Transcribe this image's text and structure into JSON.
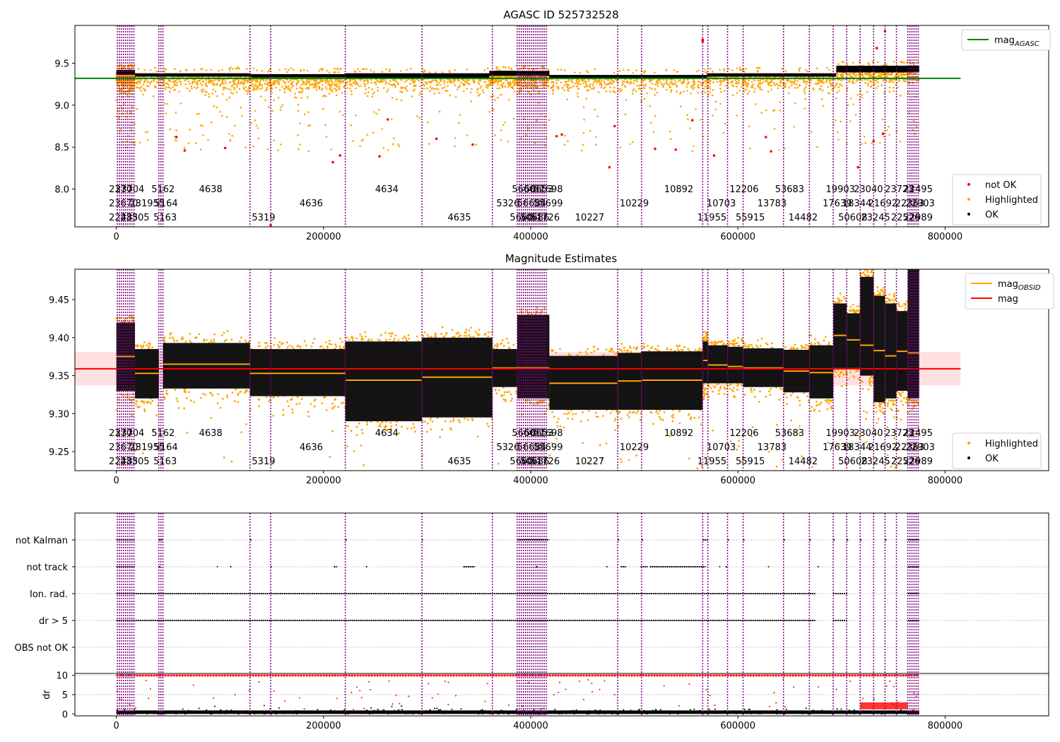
{
  "colors": {
    "agasc_line": "#008000",
    "obs_mag": "#ffa500",
    "mag": "#ff0000",
    "not_ok": "#ff0000",
    "highlighted": "#ffa500",
    "ok": "#000000",
    "obs_line": "#800080",
    "band": "#ffcccc"
  },
  "chart_data": [
    {
      "type": "scatter",
      "title": "AGASC ID 525732528",
      "xlim": [
        -40000,
        900000
      ],
      "ylim": [
        7.55,
        9.95
      ],
      "xticks": [
        0,
        200000,
        400000,
        600000,
        800000
      ],
      "xtick_labels": [
        "0",
        "200000",
        "400000",
        "600000",
        "800000"
      ],
      "yticks": [
        8.0,
        8.5,
        9.0,
        9.5
      ],
      "ytick_labels": [
        "8.0",
        "8.5",
        "9.0",
        "9.5"
      ],
      "legend_upper": {
        "position": "top-right",
        "entries": [
          {
            "label": "mag",
            "subscript": "AGASC",
            "color": "#008000"
          }
        ]
      },
      "legend_lower": {
        "position": "bottom-right",
        "entries": [
          {
            "label": "not OK",
            "color": "#ff0000"
          },
          {
            "label": "Highlighted",
            "color": "#ffa500"
          },
          {
            "label": "OK",
            "color": "#000000"
          }
        ]
      },
      "mag_agasc": 9.32,
      "mag_agasc_x": [
        -40000,
        815000
      ],
      "segments": [
        {
          "x0": 0,
          "x1": 18000,
          "mean": 9.39,
          "spread": 0.03
        },
        {
          "x0": 18000,
          "x1": 130000,
          "mean": 9.36,
          "spread": 0.02
        },
        {
          "x0": 130000,
          "x1": 220000,
          "mean": 9.35,
          "spread": 0.02
        },
        {
          "x0": 220000,
          "x1": 360000,
          "mean": 9.35,
          "spread": 0.03
        },
        {
          "x0": 360000,
          "x1": 418000,
          "mean": 9.38,
          "spread": 0.03
        },
        {
          "x0": 418000,
          "x1": 570000,
          "mean": 9.34,
          "spread": 0.02
        },
        {
          "x0": 570000,
          "x1": 695000,
          "mean": 9.36,
          "spread": 0.02
        },
        {
          "x0": 695000,
          "x1": 775000,
          "mean": 9.43,
          "spread": 0.04
        }
      ],
      "not_ok_points": [
        {
          "x": 58000,
          "y": 8.62
        },
        {
          "x": 66000,
          "y": 8.46
        },
        {
          "x": 105000,
          "y": 8.49
        },
        {
          "x": 209000,
          "y": 8.32
        },
        {
          "x": 216000,
          "y": 8.4
        },
        {
          "x": 254000,
          "y": 8.39
        },
        {
          "x": 262000,
          "y": 8.83
        },
        {
          "x": 309000,
          "y": 8.6
        },
        {
          "x": 344000,
          "y": 8.53
        },
        {
          "x": 425000,
          "y": 8.63
        },
        {
          "x": 430000,
          "y": 8.65
        },
        {
          "x": 476000,
          "y": 8.26
        },
        {
          "x": 481000,
          "y": 8.75
        },
        {
          "x": 520000,
          "y": 8.48
        },
        {
          "x": 540000,
          "y": 8.47
        },
        {
          "x": 556000,
          "y": 8.82
        },
        {
          "x": 566000,
          "y": 9.78
        },
        {
          "x": 566000,
          "y": 9.76
        },
        {
          "x": 577000,
          "y": 8.4
        },
        {
          "x": 627000,
          "y": 8.62
        },
        {
          "x": 632000,
          "y": 8.45
        },
        {
          "x": 716000,
          "y": 8.26
        },
        {
          "x": 731000,
          "y": 8.57
        },
        {
          "x": 734000,
          "y": 9.68
        },
        {
          "x": 740000,
          "y": 8.66
        },
        {
          "x": 742000,
          "y": 9.88
        },
        {
          "x": 149000,
          "y": 7.57
        }
      ],
      "obs_lines": [
        1000,
        3000,
        5000,
        7000,
        9000,
        11000,
        13000,
        15000,
        17000,
        41000,
        43000,
        45000,
        129000,
        149000,
        221000,
        295000,
        363000,
        387000,
        389000,
        391000,
        393000,
        395000,
        397000,
        399000,
        401000,
        403000,
        405000,
        407000,
        409000,
        411000,
        413000,
        415000,
        484000,
        507000,
        566000,
        571000,
        590000,
        605000,
        644000,
        669000,
        692000,
        705000,
        718000,
        731000,
        742000,
        753000,
        764000,
        766000,
        768000,
        770000,
        772000,
        774000
      ],
      "obs_labels": [
        {
          "text": "2370",
          "x": 1000,
          "row": 0
        },
        {
          "text": "23704",
          "x": 7000,
          "row": 0
        },
        {
          "text": "5162",
          "x": 42000,
          "row": 0
        },
        {
          "text": "4638",
          "x": 88000,
          "row": 0
        },
        {
          "text": "4634",
          "x": 258000,
          "row": 0
        },
        {
          "text": "5660",
          "x": 390000,
          "row": 0
        },
        {
          "text": "56653",
          "x": 402000,
          "row": 0
        },
        {
          "text": "51698",
          "x": 411000,
          "row": 0
        },
        {
          "text": "10892",
          "x": 537000,
          "row": 0
        },
        {
          "text": "12206",
          "x": 600000,
          "row": 0
        },
        {
          "text": "53683",
          "x": 644000,
          "row": 0
        },
        {
          "text": "19903",
          "x": 693000,
          "row": 0
        },
        {
          "text": "23040",
          "x": 720000,
          "row": 0
        },
        {
          "text": "23723",
          "x": 750000,
          "row": 0
        },
        {
          "text": "22495",
          "x": 768000,
          "row": 0
        },
        {
          "text": "23670",
          "x": 1000,
          "row": 1
        },
        {
          "text": "231955",
          "x": 21000,
          "row": 1
        },
        {
          "text": "5164",
          "x": 45000,
          "row": 1
        },
        {
          "text": "4636",
          "x": 185000,
          "row": 1
        },
        {
          "text": "5326",
          "x": 375000,
          "row": 1
        },
        {
          "text": "56684",
          "x": 395000,
          "row": 1
        },
        {
          "text": "55699",
          "x": 411000,
          "row": 1
        },
        {
          "text": "10229",
          "x": 494000,
          "row": 1
        },
        {
          "text": "10703",
          "x": 578000,
          "row": 1
        },
        {
          "text": "13783",
          "x": 627000,
          "row": 1
        },
        {
          "text": "17639",
          "x": 690000,
          "row": 1
        },
        {
          "text": "18344",
          "x": 709000,
          "row": 1
        },
        {
          "text": "21692",
          "x": 734000,
          "row": 1
        },
        {
          "text": "22363",
          "x": 760000,
          "row": 1
        },
        {
          "text": "22903",
          "x": 770000,
          "row": 1
        },
        {
          "text": "22485",
          "x": 1000,
          "row": 2
        },
        {
          "text": "23305",
          "x": 12000,
          "row": 2
        },
        {
          "text": "5163",
          "x": 44000,
          "row": 2
        },
        {
          "text": "5319",
          "x": 139000,
          "row": 2
        },
        {
          "text": "4635",
          "x": 328000,
          "row": 2
        },
        {
          "text": "5660",
          "x": 388000,
          "row": 2
        },
        {
          "text": "50686",
          "x": 398000,
          "row": 2
        },
        {
          "text": "51726",
          "x": 408000,
          "row": 2
        },
        {
          "text": "10227",
          "x": 451000,
          "row": 2
        },
        {
          "text": "11955",
          "x": 569000,
          "row": 2
        },
        {
          "text": "55915",
          "x": 606000,
          "row": 2
        },
        {
          "text": "14482",
          "x": 657000,
          "row": 2
        },
        {
          "text": "50608",
          "x": 705000,
          "row": 2
        },
        {
          "text": "23245",
          "x": 727000,
          "row": 2
        },
        {
          "text": "22526",
          "x": 756000,
          "row": 2
        },
        {
          "text": "22989",
          "x": 768000,
          "row": 2
        }
      ]
    },
    {
      "type": "scatter",
      "title": "Magnitude Estimates",
      "xlim": [
        -40000,
        900000
      ],
      "ylim": [
        9.225,
        9.49
      ],
      "xticks": [
        0,
        200000,
        400000,
        600000,
        800000
      ],
      "xtick_labels": [
        "0",
        "200000",
        "400000",
        "600000",
        "800000"
      ],
      "yticks": [
        9.25,
        9.3,
        9.35,
        9.4,
        9.45
      ],
      "ytick_labels": [
        "9.25",
        "9.30",
        "9.35",
        "9.40",
        "9.45"
      ],
      "legend_upper": {
        "position": "top-right",
        "entries": [
          {
            "label": "mag",
            "subscript": "OBSID",
            "color": "#ffa500"
          },
          {
            "label": "mag",
            "subscript": "",
            "color": "#ff0000"
          }
        ]
      },
      "legend_lower": {
        "position": "bottom-right",
        "entries": [
          {
            "label": "Highlighted",
            "color": "#ffa500"
          },
          {
            "label": "OK",
            "color": "#000000"
          }
        ]
      },
      "mag": 9.359,
      "mag_band": [
        9.337,
        9.381
      ],
      "mag_x": [
        -40000,
        815000
      ],
      "obsid_mags": [
        {
          "x0": 0,
          "x1": 18000,
          "mag": 9.375,
          "lo": 9.33,
          "hi": 9.42
        },
        {
          "x0": 18000,
          "x1": 41000,
          "mag": 9.353,
          "lo": 9.32,
          "hi": 9.385
        },
        {
          "x0": 45000,
          "x1": 129000,
          "mag": 9.365,
          "lo": 9.333,
          "hi": 9.393
        },
        {
          "x0": 129000,
          "x1": 221000,
          "mag": 9.353,
          "lo": 9.323,
          "hi": 9.385
        },
        {
          "x0": 221000,
          "x1": 295000,
          "mag": 9.344,
          "lo": 9.29,
          "hi": 9.395
        },
        {
          "x0": 295000,
          "x1": 363000,
          "mag": 9.348,
          "lo": 9.295,
          "hi": 9.4
        },
        {
          "x0": 363000,
          "x1": 387000,
          "mag": 9.36,
          "lo": 9.335,
          "hi": 9.385
        },
        {
          "x0": 387000,
          "x1": 418000,
          "mag": 9.36,
          "lo": 9.32,
          "hi": 9.43
        },
        {
          "x0": 418000,
          "x1": 484000,
          "mag": 9.34,
          "lo": 9.305,
          "hi": 9.376
        },
        {
          "x0": 484000,
          "x1": 507000,
          "mag": 9.343,
          "lo": 9.305,
          "hi": 9.38
        },
        {
          "x0": 507000,
          "x1": 566000,
          "mag": 9.344,
          "lo": 9.305,
          "hi": 9.382
        },
        {
          "x0": 566000,
          "x1": 571000,
          "mag": 9.37,
          "lo": 9.34,
          "hi": 9.395
        },
        {
          "x0": 571000,
          "x1": 590000,
          "mag": 9.364,
          "lo": 9.34,
          "hi": 9.39
        },
        {
          "x0": 590000,
          "x1": 605000,
          "mag": 9.362,
          "lo": 9.34,
          "hi": 9.388
        },
        {
          "x0": 605000,
          "x1": 644000,
          "mag": 9.36,
          "lo": 9.335,
          "hi": 9.386
        },
        {
          "x0": 644000,
          "x1": 669000,
          "mag": 9.356,
          "lo": 9.328,
          "hi": 9.384
        },
        {
          "x0": 669000,
          "x1": 692000,
          "mag": 9.354,
          "lo": 9.32,
          "hi": 9.39
        },
        {
          "x0": 692000,
          "x1": 705000,
          "mag": 9.403,
          "lo": 9.36,
          "hi": 9.445
        },
        {
          "x0": 705000,
          "x1": 718000,
          "mag": 9.397,
          "lo": 9.36,
          "hi": 9.432
        },
        {
          "x0": 718000,
          "x1": 731000,
          "mag": 9.39,
          "lo": 9.35,
          "hi": 9.48
        },
        {
          "x0": 731000,
          "x1": 742000,
          "mag": 9.383,
          "lo": 9.315,
          "hi": 9.455
        },
        {
          "x0": 742000,
          "x1": 753000,
          "mag": 9.376,
          "lo": 9.32,
          "hi": 9.445
        },
        {
          "x0": 753000,
          "x1": 764000,
          "mag": 9.382,
          "lo": 9.33,
          "hi": 9.435
        },
        {
          "x0": 764000,
          "x1": 775000,
          "mag": 9.38,
          "lo": 9.32,
          "hi": 9.49
        }
      ],
      "obs_labels_same_as_panel_1": true
    },
    {
      "type": "scatter",
      "title": "",
      "xlim": [
        -40000,
        900000
      ],
      "flag_rows": [
        "not Kalman",
        "not track",
        "Ion. rad.",
        "dr > 5",
        "OBS not OK"
      ],
      "flag_spans": {
        "not Kalman": [
          [
            0,
            18000
          ],
          [
            41000,
            45000
          ],
          [
            129000,
            131000
          ],
          [
            221000,
            223000
          ],
          [
            295000,
            296000
          ],
          [
            387000,
            418000
          ],
          [
            484000,
            486000
          ],
          [
            507000,
            509000
          ],
          [
            566000,
            571000
          ],
          [
            590000,
            592000
          ],
          [
            605000,
            607000
          ],
          [
            644000,
            646000
          ],
          [
            669000,
            671000
          ],
          [
            692000,
            694000
          ],
          [
            705000,
            707000
          ],
          [
            718000,
            720000
          ],
          [
            742000,
            744000
          ],
          [
            764000,
            775000
          ]
        ],
        "not track": [
          [
            0,
            18000
          ],
          [
            41000,
            43000
          ],
          [
            97000,
            98000
          ],
          [
            110000,
            111000
          ],
          [
            149000,
            150000
          ],
          [
            210000,
            213000
          ],
          [
            241000,
            242000
          ],
          [
            335000,
            346000
          ],
          [
            405000,
            407000
          ],
          [
            473000,
            474000
          ],
          [
            487000,
            492000
          ],
          [
            506000,
            513000
          ],
          [
            515000,
            569000
          ],
          [
            582000,
            583000
          ],
          [
            588000,
            590000
          ],
          [
            629000,
            630000
          ],
          [
            677000,
            678000
          ],
          [
            764000,
            775000
          ]
        ],
        "Ion. rad.": [
          [
            0,
            675000
          ],
          [
            692000,
            706000
          ],
          [
            764000,
            775000
          ]
        ],
        "dr > 5": [
          [
            0,
            675000
          ],
          [
            692000,
            705000
          ],
          [
            764000,
            775000
          ]
        ],
        "OBS not OK": []
      },
      "ylabel_dr": "dr",
      "dr_yticks": [
        0,
        5,
        10
      ],
      "dr_ytick_labels": [
        "0",
        "5",
        "10"
      ],
      "dr_ylim": [
        -0.5,
        10.5
      ],
      "xticks": [
        0,
        200000,
        400000,
        600000,
        800000
      ],
      "xtick_labels": [
        "0",
        "200000",
        "400000",
        "600000",
        "800000"
      ]
    }
  ]
}
